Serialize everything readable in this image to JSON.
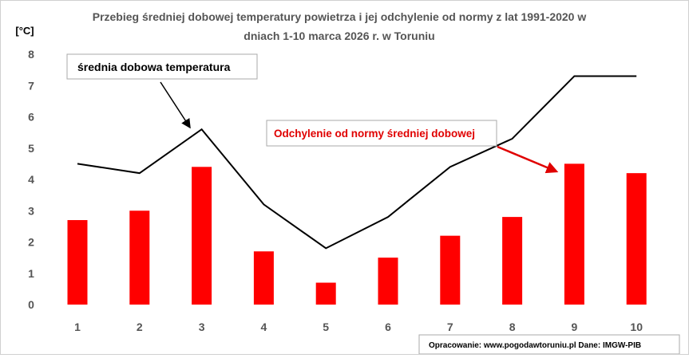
{
  "chart_data": {
    "type": "bar+line",
    "title_line1": "Przebieg średniej dobowej temperatury powietrza i jej odchylenie od normy z lat 1991-2020 w",
    "title_line2": "dniach 1-10 marca 2026 r. w Toruniu",
    "ylabel": "[°C]",
    "xlabel": "",
    "ylim": [
      0,
      8
    ],
    "yticks": [
      "0",
      "1",
      "2",
      "3",
      "4",
      "5",
      "6",
      "7",
      "8"
    ],
    "categories": [
      "1",
      "2",
      "3",
      "4",
      "5",
      "6",
      "7",
      "8",
      "9",
      "10"
    ],
    "grid": false,
    "series": [
      {
        "kind": "bar",
        "color": "#ff0000",
        "values": [
          2.7,
          3.0,
          4.4,
          1.7,
          0.7,
          1.5,
          2.2,
          2.8,
          4.5,
          4.2
        ]
      },
      {
        "kind": "line",
        "color": "#000000",
        "values": [
          4.5,
          4.2,
          5.6,
          3.2,
          1.8,
          2.8,
          4.4,
          5.3,
          7.3,
          7.3
        ]
      }
    ],
    "annotations": {
      "line_label": "średnia dobowa temperatura",
      "bar_label": "Odchylenie od normy średniej dobowej",
      "bar_label_color": "#ff0000"
    },
    "source": "Opracowanie: www.pogodawtoruniu.pl  Dane: IMGW-PIB"
  }
}
